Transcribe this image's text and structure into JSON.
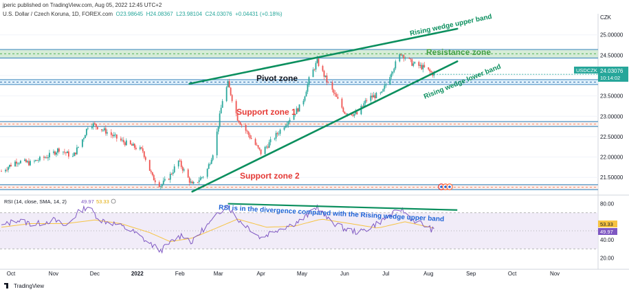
{
  "header": {
    "publisher": "jperic published on TradingView.com, Aug 05, 2022 12:45 UTC+2",
    "symbol_line": "U.S. Dollar / Czech Koruna, 1D, FOREX.com",
    "ohlc": {
      "O": "23.98645",
      "H": "24.08367",
      "L": "23.98104",
      "C": "24.03076",
      "change": "+0.04431 (+0.18%)"
    }
  },
  "price_axis": {
    "currency": "CZK",
    "ticks": [
      "25.00000",
      "24.50000",
      "24.00000",
      "23.50000",
      "23.00000",
      "22.50000",
      "22.00000",
      "21.50000"
    ]
  },
  "symbol_badge": {
    "ticker": "USDCZK",
    "price": "24.03076",
    "countdown": "10:14:02"
  },
  "rsi": {
    "label": "RSI (14, close, SMA, 14, 2)",
    "rsi_value": "49.97",
    "ma_value": "53.33",
    "ticks": [
      "80.00",
      "40.00",
      "20.00"
    ],
    "badge_rsi": "49.97",
    "badge_ma": "53.33"
  },
  "time_axis": [
    "Oct",
    "Nov",
    "Dec",
    "2022",
    "Feb",
    "Mar",
    "Apr",
    "May",
    "Jun",
    "Jul",
    "Aug",
    "Sep",
    "Oct",
    "Nov"
  ],
  "annotations": {
    "upper_band": "Rising wedge upper band",
    "resistance": "Resistance zone",
    "pivot": "Pivot zone",
    "lower_band": "Rising wedge lower band",
    "support1": "Support zone 1",
    "support2": "Support zone 2",
    "rsi_div": "RSI is in the divergence compared with the Rising wedge upper band"
  },
  "footer": {
    "brand": "TradingView"
  },
  "colors": {
    "up": "#26a69a",
    "down": "#ef5350",
    "band": "#0b8f5e",
    "rsi": "#7e57c2",
    "rsi_ma": "#f6c342",
    "resistance_text": "#43a047",
    "support_text": "#e53935",
    "pivot_text": "#131722",
    "rsi_div_text": "#1e63d6"
  },
  "chart_data": [
    {
      "type": "candlestick",
      "title": "U.S. Dollar / Czech Koruna, 1D, FOREX.com",
      "ylabel": "CZK",
      "ylim": [
        21.2,
        25.35
      ],
      "x_range": [
        "2021-09-25",
        "2022-11-30"
      ],
      "zones": [
        {
          "name": "Resistance zone",
          "low": 24.43,
          "high": 24.64
        },
        {
          "name": "Pivot zone",
          "low": 23.78,
          "high": 23.9
        },
        {
          "name": "Support zone 1",
          "low": 22.75,
          "high": 22.87
        },
        {
          "name": "Support zone 2",
          "low": 21.2,
          "high": 21.32
        }
      ],
      "trendlines": [
        {
          "name": "Rising wedge upper band",
          "from": [
            "2022-02-08",
            23.8
          ],
          "to": [
            "2022-08-22",
            25.15
          ]
        },
        {
          "name": "Rising wedge lower band",
          "from": [
            "2022-02-10",
            21.15
          ],
          "to": [
            "2022-08-22",
            24.35
          ]
        }
      ],
      "path_points": [
        [
          "2021-09-24",
          21.65
        ],
        [
          "2021-10-05",
          21.9
        ],
        [
          "2021-10-15",
          21.85
        ],
        [
          "2021-10-30",
          22.05
        ],
        [
          "2021-11-05",
          22.2
        ],
        [
          "2021-11-15",
          22.0
        ],
        [
          "2021-11-23",
          22.5
        ],
        [
          "2021-11-27",
          22.85
        ],
        [
          "2021-12-08",
          22.65
        ],
        [
          "2021-12-20",
          22.4
        ],
        [
          "2022-01-05",
          22.15
        ],
        [
          "2022-01-12",
          21.5
        ],
        [
          "2022-01-18",
          21.3
        ],
        [
          "2022-01-24",
          21.5
        ],
        [
          "2022-01-31",
          21.9
        ],
        [
          "2022-02-05",
          21.6
        ],
        [
          "2022-02-10",
          21.3
        ],
        [
          "2022-02-20",
          21.6
        ],
        [
          "2022-02-26",
          22.2
        ],
        [
          "2022-03-04",
          23.4
        ],
        [
          "2022-03-08",
          23.8
        ],
        [
          "2022-03-15",
          22.95
        ],
        [
          "2022-03-22",
          22.6
        ],
        [
          "2022-04-01",
          22.1
        ],
        [
          "2022-04-10",
          22.45
        ],
        [
          "2022-04-22",
          22.95
        ],
        [
          "2022-05-01",
          23.3
        ],
        [
          "2022-05-06",
          23.9
        ],
        [
          "2022-05-12",
          24.35
        ],
        [
          "2022-05-20",
          23.8
        ],
        [
          "2022-06-01",
          23.1
        ],
        [
          "2022-06-10",
          23.05
        ],
        [
          "2022-06-18",
          23.45
        ],
        [
          "2022-06-28",
          23.55
        ],
        [
          "2022-07-05",
          24.1
        ],
        [
          "2022-07-12",
          24.55
        ],
        [
          "2022-07-20",
          24.3
        ],
        [
          "2022-07-28",
          24.2
        ],
        [
          "2022-08-05",
          24.03
        ]
      ]
    },
    {
      "type": "line",
      "title": "RSI (14, close, SMA, 14, 2)",
      "ylim": [
        15,
        85
      ],
      "levels": [
        30,
        50,
        70
      ],
      "trendlines": [
        {
          "name": "RSI divergence line",
          "from": [
            "2022-03-08",
            80
          ],
          "to": [
            "2022-08-22",
            73
          ]
        }
      ],
      "series": [
        {
          "name": "RSI",
          "points": [
            [
              "2021-09-24",
              55
            ],
            [
              "2021-10-05",
              62
            ],
            [
              "2021-10-18",
              57
            ],
            [
              "2021-11-01",
              62
            ],
            [
              "2021-11-10",
              55
            ],
            [
              "2021-11-20",
              72
            ],
            [
              "2021-11-26",
              77
            ],
            [
              "2021-12-05",
              62
            ],
            [
              "2021-12-15",
              58
            ],
            [
              "2021-12-28",
              50
            ],
            [
              "2022-01-10",
              36
            ],
            [
              "2022-01-18",
              28
            ],
            [
              "2022-01-26",
              38
            ],
            [
              "2022-02-03",
              46
            ],
            [
              "2022-02-10",
              37
            ],
            [
              "2022-02-18",
              52
            ],
            [
              "2022-02-26",
              63
            ],
            [
              "2022-03-07",
              80
            ],
            [
              "2022-03-14",
              64
            ],
            [
              "2022-03-22",
              55
            ],
            [
              "2022-04-01",
              42
            ],
            [
              "2022-04-10",
              50
            ],
            [
              "2022-04-22",
              56
            ],
            [
              "2022-05-01",
              62
            ],
            [
              "2022-05-12",
              77
            ],
            [
              "2022-05-20",
              62
            ],
            [
              "2022-06-01",
              52
            ],
            [
              "2022-06-12",
              48
            ],
            [
              "2022-06-22",
              56
            ],
            [
              "2022-07-01",
              64
            ],
            [
              "2022-07-12",
              74
            ],
            [
              "2022-07-20",
              63
            ],
            [
              "2022-07-28",
              57
            ],
            [
              "2022-08-05",
              50
            ]
          ]
        },
        {
          "name": "RSI-based MA",
          "points": [
            [
              "2021-09-24",
              54
            ],
            [
              "2021-10-15",
              58
            ],
            [
              "2021-11-10",
              58
            ],
            [
              "2021-12-01",
              62
            ],
            [
              "2021-12-20",
              58
            ],
            [
              "2022-01-10",
              48
            ],
            [
              "2022-01-25",
              38
            ],
            [
              "2022-02-10",
              42
            ],
            [
              "2022-02-26",
              52
            ],
            [
              "2022-03-15",
              63
            ],
            [
              "2022-04-05",
              54
            ],
            [
              "2022-04-25",
              55
            ],
            [
              "2022-05-15",
              63
            ],
            [
              "2022-06-05",
              58
            ],
            [
              "2022-06-25",
              53
            ],
            [
              "2022-07-15",
              60
            ],
            [
              "2022-08-05",
              53
            ]
          ]
        }
      ]
    }
  ]
}
